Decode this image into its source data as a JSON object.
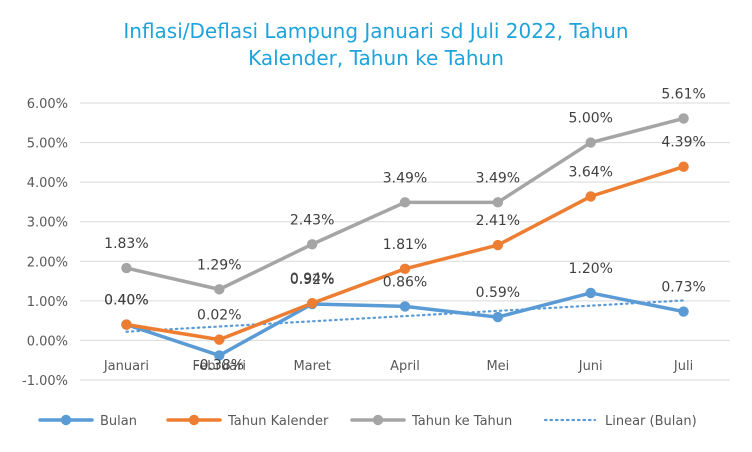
{
  "chart_data": {
    "type": "line",
    "title_lines": [
      "Inflasi/Deflasi Lampung Januari sd Juli 2022, Tahun",
      "Kalender, Tahun ke Tahun"
    ],
    "categories": [
      "Januari",
      "Februari",
      "Maret",
      "April",
      "Mei",
      "Juni",
      "Juli"
    ],
    "ylim": [
      -0.01,
      0.06
    ],
    "yticks": [
      -0.01,
      0,
      0.01,
      0.02,
      0.03,
      0.04,
      0.05,
      0.06
    ],
    "ytick_labels": [
      "-1.00%",
      "0.00%",
      "1.00%",
      "2.00%",
      "3.00%",
      "4.00%",
      "5.00%",
      "6.00%"
    ],
    "grid": true,
    "legend_position": "bottom",
    "series": [
      {
        "name": "Bulan",
        "color": "#5b9bd5",
        "values": [
          0.004,
          -0.0038,
          0.0092,
          0.0086,
          0.0059,
          0.012,
          0.0073
        ],
        "labels": [
          "0.40%",
          "-0.38%",
          "0.92%",
          "0.86%",
          "0.59%",
          "1.20%",
          "0.73%"
        ]
      },
      {
        "name": "Tahun Kalender",
        "color": "#ed7d31",
        "values": [
          0.004,
          0.0002,
          0.0094,
          0.0181,
          0.0241,
          0.0364,
          0.0439
        ],
        "labels": [
          "0.40%",
          "0.02%",
          "0.94%",
          "1.81%",
          "2.41%",
          "3.64%",
          "4.39%"
        ]
      },
      {
        "name": "Tahun ke Tahun",
        "color": "#a5a5a5",
        "values": [
          0.0183,
          0.0129,
          0.0243,
          0.0349,
          0.0349,
          0.05,
          0.0561
        ],
        "labels": [
          "1.83%",
          "1.29%",
          "2.43%",
          "3.49%",
          "3.49%",
          "5.00%",
          "5.61%"
        ]
      }
    ],
    "trendline": {
      "name": "Linear (Bulan)",
      "color": "#5b9bd5",
      "style": "dotted",
      "start": 0.0022,
      "end": 0.0101
    }
  }
}
